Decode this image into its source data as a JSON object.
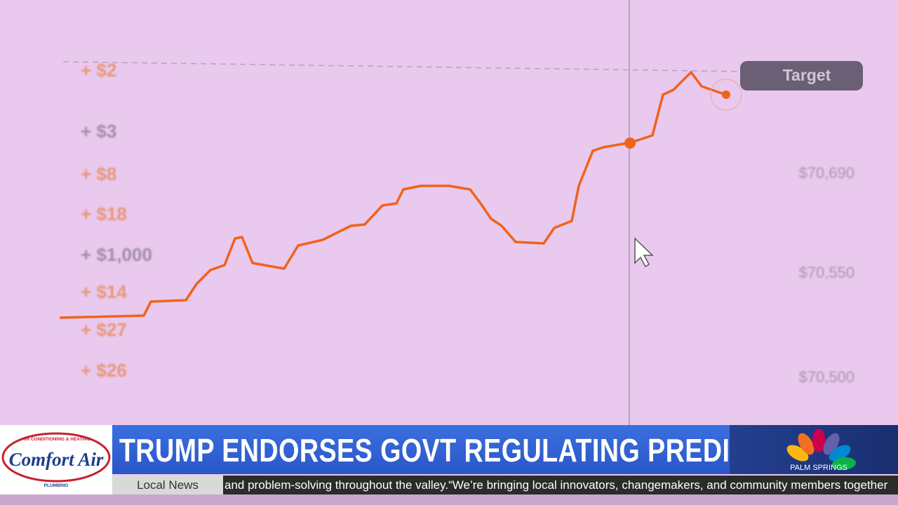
{
  "screen_chart": {
    "left_labels": [
      "+ $2",
      "+ $3",
      "+ $8",
      "+ $18",
      "+ $1,000",
      "+ $14",
      "+ $27",
      "+ $26"
    ],
    "right_labels": [
      "$70,690",
      "$70,550",
      "$70,500"
    ],
    "target_label": "Target"
  },
  "lower_third": {
    "headline": "TRUMP ENDORSES GOVT REGULATING PREDICTION MARKETS",
    "section": "Local News",
    "ticker": "and problem-solving throughout the valley.“We’re bringing local innovators, changemakers, and community members together",
    "sponsor": {
      "name": "Comfort Air",
      "tagline": "AIR CONDITIONING & HEATING",
      "service": "PLUMBING"
    },
    "station": "PALM SPRINGS"
  }
}
